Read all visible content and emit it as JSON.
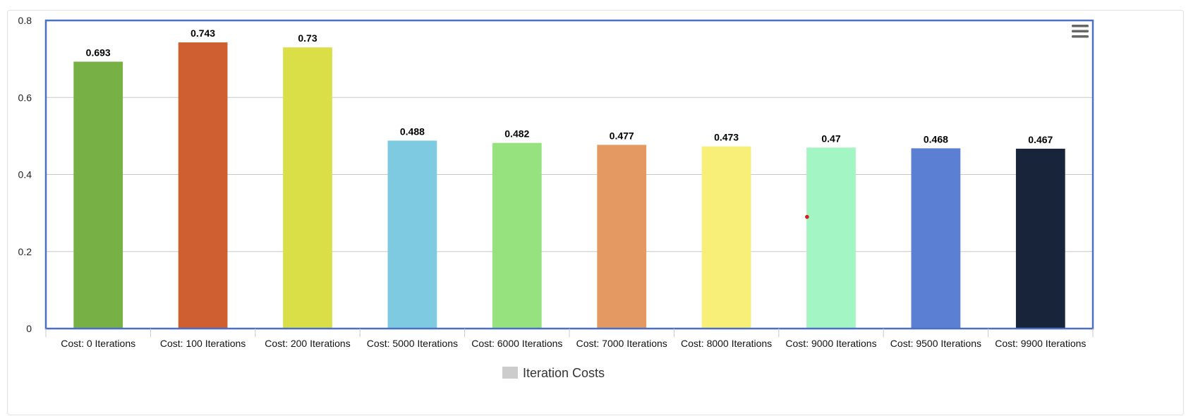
{
  "chart_data": {
    "type": "bar",
    "title": "",
    "xlabel": "",
    "ylabel": "",
    "categories": [
      "Cost: 0 Iterations",
      "Cost: 100 Iterations",
      "Cost: 200 Iterations",
      "Cost: 5000 Iterations",
      "Cost: 6000 Iterations",
      "Cost: 7000 Iterations",
      "Cost: 8000 Iterations",
      "Cost: 9000 Iterations",
      "Cost: 9500 Iterations",
      "Cost: 9900 Iterations"
    ],
    "series": [
      {
        "name": "Iteration Costs",
        "values": [
          0.693,
          0.743,
          0.73,
          0.488,
          0.482,
          0.477,
          0.473,
          0.47,
          0.468,
          0.467
        ],
        "value_labels": [
          "0.693",
          "0.743",
          "0.73",
          "0.488",
          "0.482",
          "0.477",
          "0.473",
          "0.47",
          "0.468",
          "0.467"
        ]
      }
    ],
    "bar_colors": [
      "#77b146",
      "#cf5f31",
      "#dbdf47",
      "#7ecae0",
      "#96e27e",
      "#e59962",
      "#f7ef78",
      "#a3f5c4",
      "#5b7fd3",
      "#18243a"
    ],
    "ylim": [
      0,
      0.8
    ],
    "yticks": [
      0,
      0.2,
      0.4,
      0.6,
      0.8
    ],
    "ytick_labels": [
      "0",
      "0.2",
      "0.4",
      "0.6",
      "0.8"
    ],
    "grid": true,
    "legend": {
      "position": "bottom-center",
      "label": "Iteration Costs",
      "swatch_color": "#cccccc"
    },
    "colors": {
      "axis_frame": "#4a6fc4",
      "grid": "#c8c8c8",
      "marker_dot": "#d21f1f"
    }
  },
  "menu": {
    "icon": "hamburger-menu-icon"
  }
}
